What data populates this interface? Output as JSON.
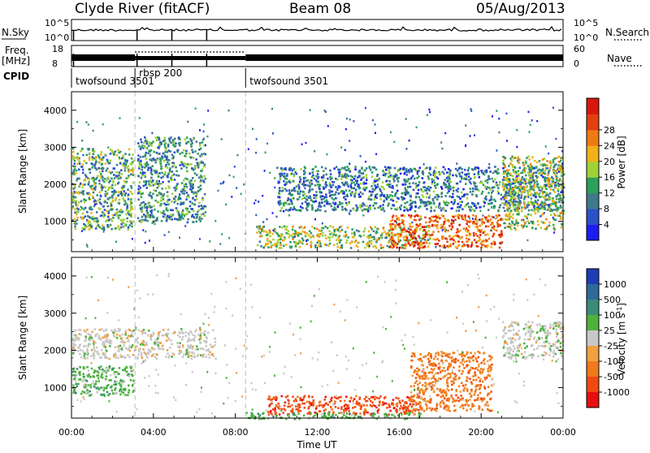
{
  "header": {
    "station": "Clyde River (fitACF)",
    "beam": "Beam 08",
    "date": "05/Aug/2013"
  },
  "strip_labels": {
    "nsky": "N.Sky",
    "nsearch": "N.Search",
    "freq_line1": "Freq.",
    "freq_line2": "[MHz]",
    "nave": "Nave",
    "cpid": "CPID",
    "nsky_ticks": [
      "10^5",
      "10^0"
    ],
    "nsearch_ticks": [
      "10^5",
      "10^0"
    ],
    "freq_ticks": [
      "18",
      "8"
    ],
    "nave_ticks": [
      "60",
      "0"
    ]
  },
  "cpid_segments": [
    {
      "label": "twofsound 3501",
      "start": 0.0,
      "end": 3.1
    },
    {
      "label": "rbsp 200",
      "start": 3.1,
      "end": 8.5
    },
    {
      "label": "twofsound 3501",
      "start": 8.5,
      "end": 24.0
    }
  ],
  "time_axis": {
    "label": "Time UT",
    "ticks": [
      "00:00",
      "04:00",
      "08:00",
      "12:00",
      "16:00",
      "20:00",
      "00:00"
    ],
    "range_hours": [
      0,
      24
    ]
  },
  "power_panel": {
    "ylabel": "Slant Range [km]",
    "yticks": [
      "1000",
      "2000",
      "3000",
      "4000"
    ],
    "yrange": [
      180,
      4500
    ],
    "colorbar_label": "Power [dB]",
    "colorbar_ticks": [
      "4",
      "8",
      "12",
      "16",
      "20",
      "24",
      "28"
    ],
    "colors": [
      "#1c1cf0",
      "#2a52c8",
      "#3f7a8c",
      "#2aa05a",
      "#a0d238",
      "#f2b11a",
      "#f07a12",
      "#e24010",
      "#d8180c"
    ]
  },
  "velocity_panel": {
    "ylabel": "Slant Range [km]",
    "yticks": [
      "1000",
      "2000",
      "3000",
      "4000"
    ],
    "yrange": [
      180,
      4500
    ],
    "colorbar_label": "Velocity [m s^-1]",
    "colorbar_ticks": [
      "1000",
      "500",
      "100",
      "25",
      "-25",
      "-100",
      "-500",
      "-1000"
    ],
    "colors": [
      "#1e3cb4",
      "#2e6a9a",
      "#3a8c78",
      "#4cb23c",
      "#c8c8c8",
      "#f0a040",
      "#f07a1a",
      "#f04a10",
      "#e60e0e"
    ]
  },
  "chart_data": [
    {
      "type": "heatmap",
      "title": "Power",
      "xlabel": "Time UT",
      "ylabel": "Slant Range [km]",
      "xlim": [
        0,
        24
      ],
      "ylim": [
        180,
        4500
      ],
      "colorbar": "Power [dB]",
      "regions": [
        {
          "t0": 0.0,
          "t1": 3.0,
          "r0": 800,
          "r1": 3000,
          "value_db": 12
        },
        {
          "t0": 3.2,
          "t1": 6.5,
          "r0": 1000,
          "r1": 3300,
          "value_db": 10
        },
        {
          "t0": 9.0,
          "t1": 17.5,
          "r0": 300,
          "r1": 900,
          "value_db": 16
        },
        {
          "t0": 15.5,
          "t1": 21.0,
          "r0": 300,
          "r1": 1200,
          "value_db": 26
        },
        {
          "t0": 10.0,
          "t1": 24.0,
          "r0": 1300,
          "r1": 2500,
          "value_db": 8
        },
        {
          "t0": 21.0,
          "t1": 24.0,
          "r0": 800,
          "r1": 2800,
          "value_db": 16
        }
      ]
    },
    {
      "type": "heatmap",
      "title": "Velocity",
      "xlabel": "Time UT",
      "ylabel": "Slant Range [km]",
      "xlim": [
        0,
        24
      ],
      "ylim": [
        180,
        4500
      ],
      "colorbar": "Velocity [m s^-1]",
      "regions": [
        {
          "t0": 0.0,
          "t1": 3.0,
          "r0": 800,
          "r1": 1600,
          "value_ms": 100
        },
        {
          "t0": 0.0,
          "t1": 7.0,
          "r0": 1800,
          "r1": 2600,
          "value_ms": 0
        },
        {
          "t0": 9.5,
          "t1": 17.0,
          "r0": 300,
          "r1": 800,
          "value_ms": -500
        },
        {
          "t0": 8.5,
          "t1": 17.0,
          "r0": 180,
          "r1": 350,
          "value_ms": 100
        },
        {
          "t0": 16.5,
          "t1": 20.5,
          "r0": 400,
          "r1": 2000,
          "value_ms": -300
        },
        {
          "t0": 21.0,
          "t1": 24.0,
          "r0": 1800,
          "r1": 2800,
          "value_ms": 0
        }
      ]
    }
  ]
}
